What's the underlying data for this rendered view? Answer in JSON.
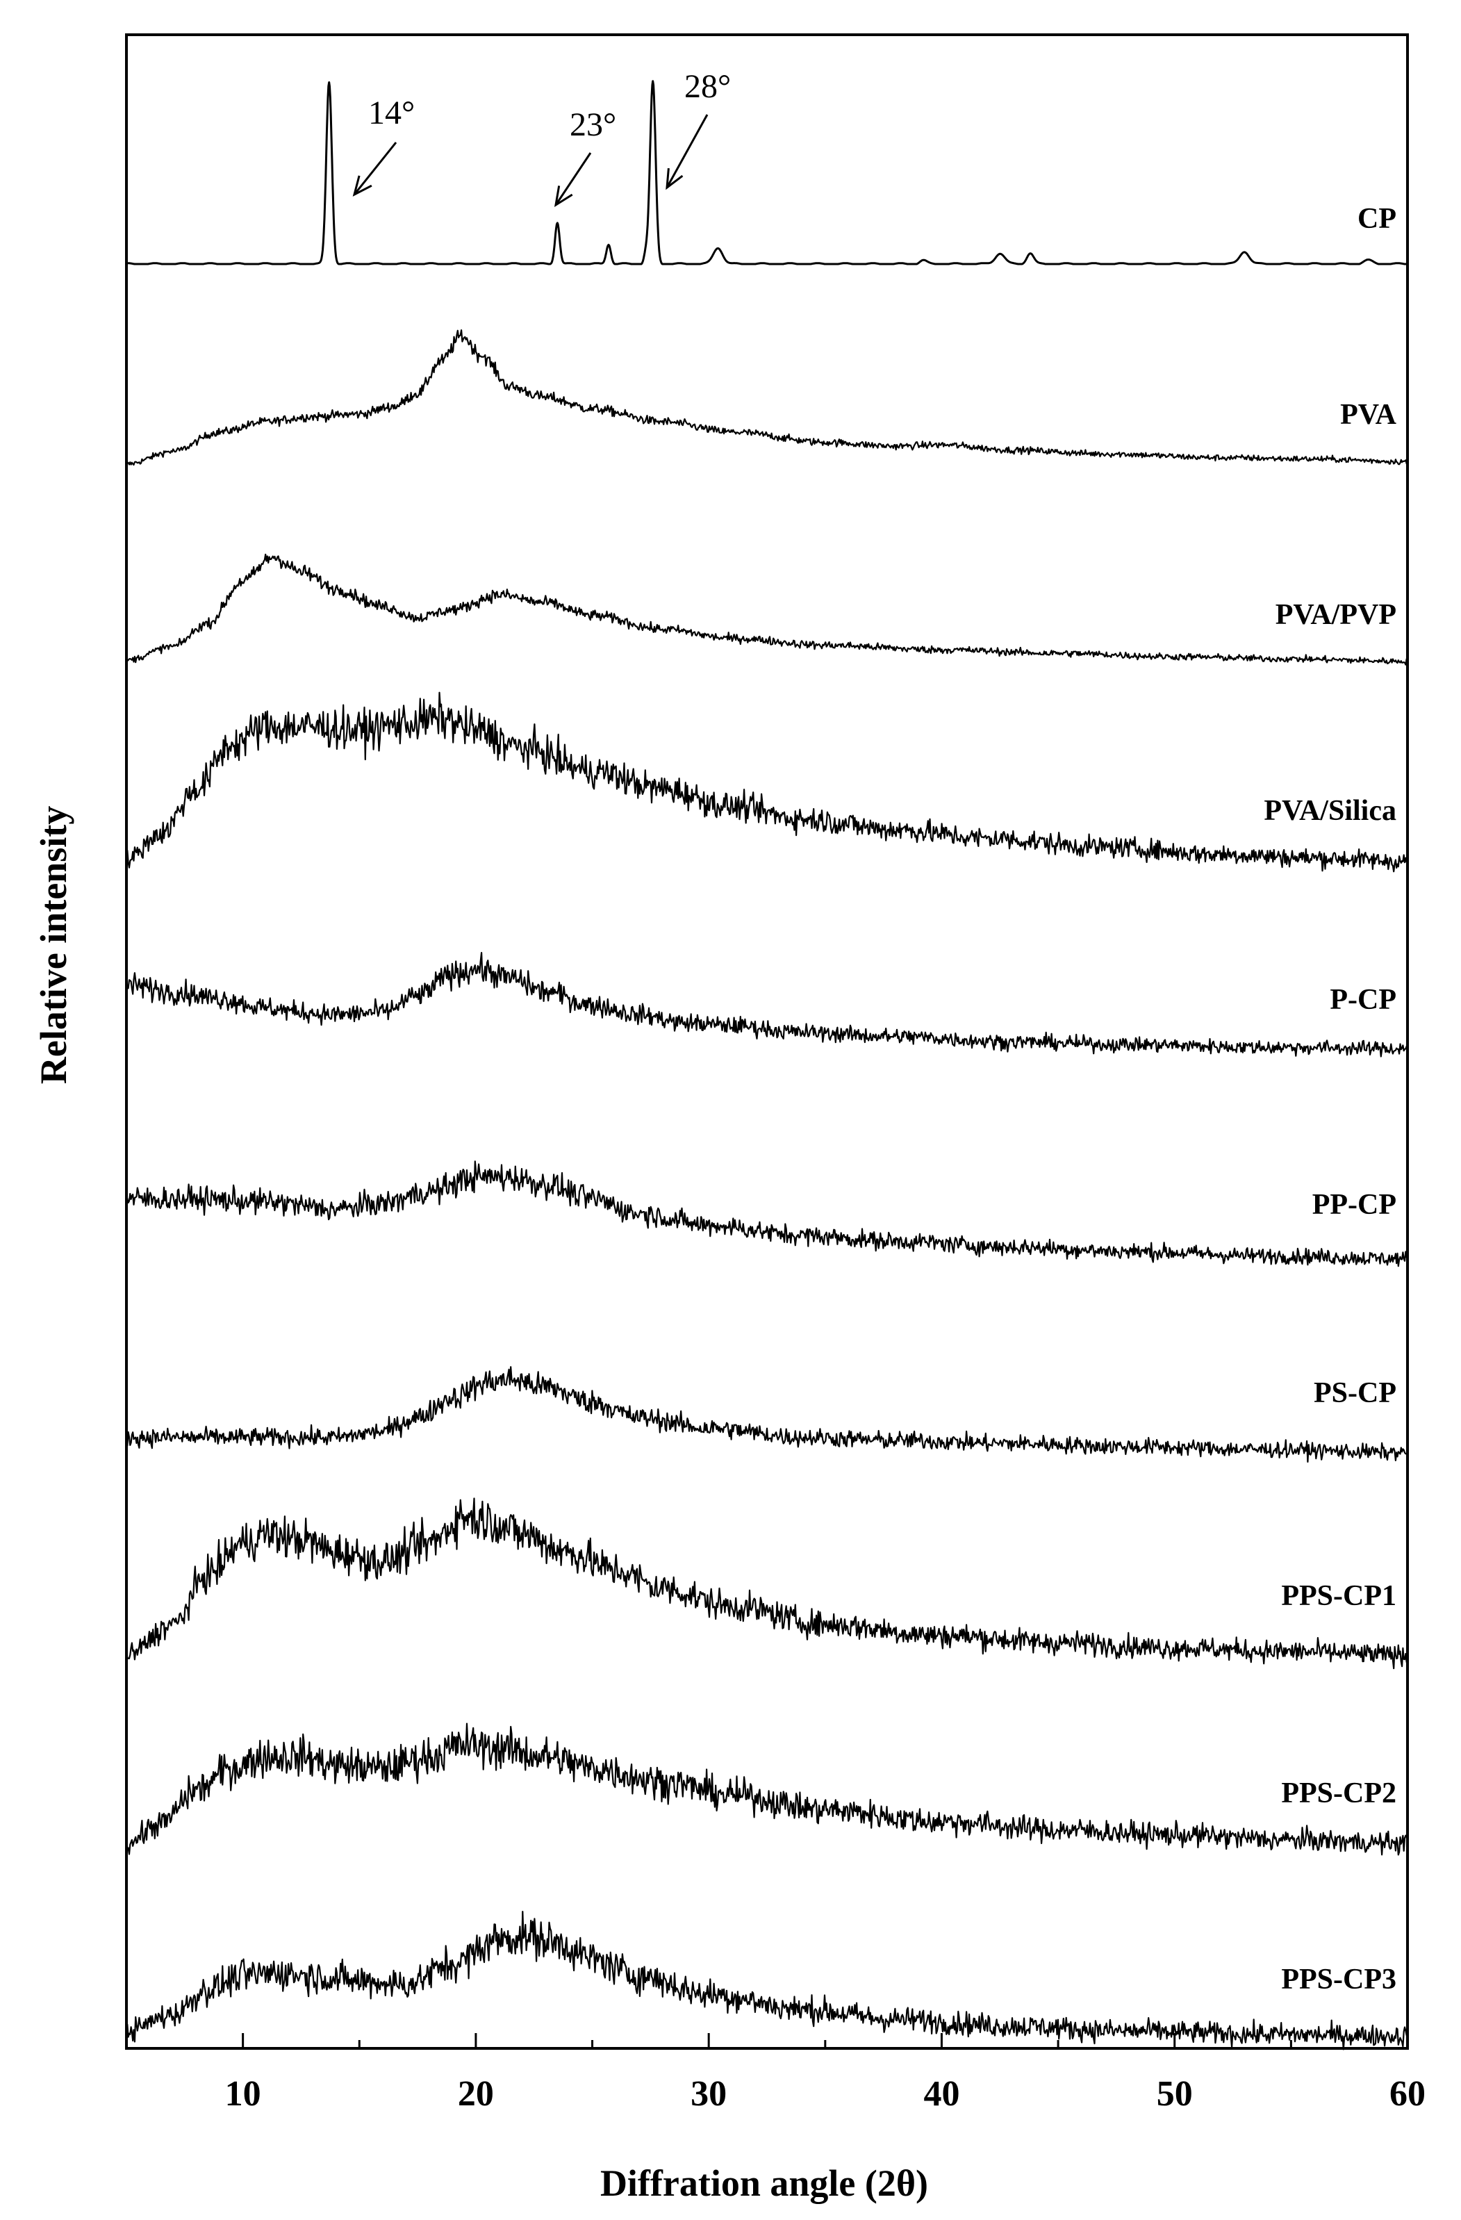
{
  "chart_data": {
    "type": "line",
    "xlabel": "Diffration angle (2θ)",
    "ylabel": "Relative intensity",
    "xlim": [
      5,
      60
    ],
    "x_ticks": [
      "10",
      "20",
      "30",
      "40",
      "50",
      "60"
    ],
    "y_ticks_shown": false,
    "grid": false,
    "legend": "none; series labeled directly at the right end of each trace",
    "layout": "vertically stacked (offset) diffractograms, CP on top, PPS-CP3 at bottom",
    "series": [
      {
        "name": "CP",
        "style": "sharp crystalline peaks",
        "baseline": 0.02,
        "peaks": [
          {
            "x": 13.7,
            "h": 1.0,
            "w": 0.12
          },
          {
            "x": 23.5,
            "h": 0.23,
            "w": 0.1
          },
          {
            "x": 25.7,
            "h": 0.11,
            "w": 0.1
          },
          {
            "x": 27.3,
            "h": 0.06,
            "w": 0.08
          },
          {
            "x": 27.6,
            "h": 1.0,
            "w": 0.12
          },
          {
            "x": 30.4,
            "h": 0.09,
            "w": 0.2
          },
          {
            "x": 39.2,
            "h": 0.02,
            "w": 0.15
          },
          {
            "x": 42.5,
            "h": 0.06,
            "w": 0.2
          },
          {
            "x": 43.8,
            "h": 0.06,
            "w": 0.15
          },
          {
            "x": 53.0,
            "h": 0.07,
            "w": 0.2
          },
          {
            "x": 58.3,
            "h": 0.02,
            "w": 0.2
          }
        ]
      },
      {
        "name": "PVA",
        "style": "semicrystalline broad peak",
        "points": [
          [
            5,
            0.0
          ],
          [
            7,
            0.1
          ],
          [
            9,
            0.25
          ],
          [
            11,
            0.33
          ],
          [
            13,
            0.37
          ],
          [
            15,
            0.39
          ],
          [
            16.5,
            0.45
          ],
          [
            17.5,
            0.55
          ],
          [
            18.5,
            0.8
          ],
          [
            19.4,
            1.0
          ],
          [
            20.2,
            0.85
          ],
          [
            21.5,
            0.6
          ],
          [
            23,
            0.52
          ],
          [
            25,
            0.43
          ],
          [
            28,
            0.33
          ],
          [
            31,
            0.25
          ],
          [
            35,
            0.17
          ],
          [
            38,
            0.14
          ],
          [
            40,
            0.15
          ],
          [
            43,
            0.11
          ],
          [
            47,
            0.08
          ],
          [
            52,
            0.05
          ],
          [
            56,
            0.04
          ],
          [
            60,
            0.02
          ]
        ]
      },
      {
        "name": "PVA/PVP",
        "style": "amorphous",
        "points": [
          [
            5,
            0.03
          ],
          [
            7,
            0.15
          ],
          [
            8.5,
            0.35
          ],
          [
            10,
            0.72
          ],
          [
            11.3,
            0.93
          ],
          [
            12.5,
            0.8
          ],
          [
            14,
            0.65
          ],
          [
            16,
            0.5
          ],
          [
            17.5,
            0.4
          ],
          [
            19,
            0.47
          ],
          [
            21,
            0.6
          ],
          [
            23,
            0.53
          ],
          [
            25,
            0.42
          ],
          [
            28,
            0.3
          ],
          [
            31,
            0.22
          ],
          [
            35,
            0.16
          ],
          [
            40,
            0.12
          ],
          [
            45,
            0.09
          ],
          [
            50,
            0.06
          ],
          [
            55,
            0.04
          ],
          [
            60,
            0.02
          ]
        ]
      },
      {
        "name": "PVA/Silica",
        "style": "amorphous",
        "points": [
          [
            5,
            0.05
          ],
          [
            6.5,
            0.2
          ],
          [
            8,
            0.45
          ],
          [
            9.5,
            0.7
          ],
          [
            11,
            0.8
          ],
          [
            13,
            0.8
          ],
          [
            15,
            0.78
          ],
          [
            17,
            0.82
          ],
          [
            18.5,
            0.85
          ],
          [
            20,
            0.78
          ],
          [
            22,
            0.68
          ],
          [
            25,
            0.55
          ],
          [
            28,
            0.45
          ],
          [
            31,
            0.35
          ],
          [
            34,
            0.28
          ],
          [
            38,
            0.22
          ],
          [
            42,
            0.17
          ],
          [
            47,
            0.12
          ],
          [
            52,
            0.08
          ],
          [
            56,
            0.06
          ],
          [
            60,
            0.04
          ]
        ]
      },
      {
        "name": "P-CP",
        "style": "amorphous",
        "points": [
          [
            5,
            0.5
          ],
          [
            7,
            0.45
          ],
          [
            9,
            0.4
          ],
          [
            11,
            0.33
          ],
          [
            12.5,
            0.3
          ],
          [
            14,
            0.28
          ],
          [
            16,
            0.3
          ],
          [
            17.5,
            0.42
          ],
          [
            19,
            0.58
          ],
          [
            20,
            0.62
          ],
          [
            21.5,
            0.55
          ],
          [
            23,
            0.45
          ],
          [
            25,
            0.35
          ],
          [
            27,
            0.28
          ],
          [
            29,
            0.22
          ],
          [
            31,
            0.2
          ],
          [
            34,
            0.15
          ],
          [
            38,
            0.12
          ],
          [
            43,
            0.08
          ],
          [
            48,
            0.06
          ],
          [
            54,
            0.04
          ],
          [
            60,
            0.03
          ]
        ]
      },
      {
        "name": "PP-CP",
        "style": "amorphous",
        "points": [
          [
            5,
            0.45
          ],
          [
            8,
            0.45
          ],
          [
            11,
            0.43
          ],
          [
            14,
            0.38
          ],
          [
            16,
            0.42
          ],
          [
            18,
            0.5
          ],
          [
            20,
            0.6
          ],
          [
            21.5,
            0.6
          ],
          [
            23,
            0.55
          ],
          [
            25,
            0.45
          ],
          [
            27,
            0.35
          ],
          [
            30,
            0.27
          ],
          [
            34,
            0.2
          ],
          [
            38,
            0.16
          ],
          [
            43,
            0.12
          ],
          [
            48,
            0.09
          ],
          [
            54,
            0.06
          ],
          [
            60,
            0.04
          ]
        ]
      },
      {
        "name": "PS-CP",
        "style": "amorphous",
        "points": [
          [
            5,
            0.12
          ],
          [
            8,
            0.12
          ],
          [
            11,
            0.12
          ],
          [
            14,
            0.12
          ],
          [
            16,
            0.16
          ],
          [
            17.5,
            0.25
          ],
          [
            19,
            0.38
          ],
          [
            20.5,
            0.48
          ],
          [
            21.5,
            0.5
          ],
          [
            23,
            0.45
          ],
          [
            25,
            0.35
          ],
          [
            27,
            0.25
          ],
          [
            30,
            0.18
          ],
          [
            34,
            0.12
          ],
          [
            38,
            0.1
          ],
          [
            43,
            0.08
          ],
          [
            48,
            0.06
          ],
          [
            54,
            0.04
          ],
          [
            60,
            0.02
          ]
        ]
      },
      {
        "name": "PPS-CP1",
        "style": "amorphous",
        "points": [
          [
            5,
            0.03
          ],
          [
            7,
            0.2
          ],
          [
            8.5,
            0.48
          ],
          [
            10,
            0.65
          ],
          [
            11,
            0.7
          ],
          [
            12.5,
            0.67
          ],
          [
            14,
            0.6
          ],
          [
            16,
            0.55
          ],
          [
            18,
            0.65
          ],
          [
            19.5,
            0.8
          ],
          [
            20.5,
            0.78
          ],
          [
            22,
            0.7
          ],
          [
            24,
            0.6
          ],
          [
            26,
            0.5
          ],
          [
            28,
            0.4
          ],
          [
            31,
            0.3
          ],
          [
            35,
            0.2
          ],
          [
            40,
            0.14
          ],
          [
            45,
            0.1
          ],
          [
            50,
            0.07
          ],
          [
            55,
            0.05
          ],
          [
            60,
            0.03
          ]
        ]
      },
      {
        "name": "PPS-CP2",
        "style": "amorphous",
        "points": [
          [
            5,
            0.03
          ],
          [
            6.5,
            0.15
          ],
          [
            8,
            0.35
          ],
          [
            9.5,
            0.48
          ],
          [
            11,
            0.55
          ],
          [
            12.5,
            0.55
          ],
          [
            14,
            0.5
          ],
          [
            16,
            0.48
          ],
          [
            18,
            0.55
          ],
          [
            19.5,
            0.62
          ],
          [
            21,
            0.6
          ],
          [
            23,
            0.55
          ],
          [
            25,
            0.48
          ],
          [
            28,
            0.4
          ],
          [
            31,
            0.32
          ],
          [
            35,
            0.23
          ],
          [
            40,
            0.16
          ],
          [
            45,
            0.11
          ],
          [
            50,
            0.08
          ],
          [
            55,
            0.05
          ],
          [
            60,
            0.03
          ]
        ]
      },
      {
        "name": "PPS-CP3",
        "style": "amorphous",
        "points": [
          [
            5,
            0.05
          ],
          [
            7,
            0.15
          ],
          [
            8.5,
            0.3
          ],
          [
            10,
            0.38
          ],
          [
            11.5,
            0.4
          ],
          [
            13,
            0.38
          ],
          [
            15,
            0.35
          ],
          [
            17,
            0.33
          ],
          [
            19,
            0.45
          ],
          [
            21,
            0.6
          ],
          [
            22,
            0.62
          ],
          [
            23.5,
            0.58
          ],
          [
            25,
            0.48
          ],
          [
            27,
            0.38
          ],
          [
            30,
            0.27
          ],
          [
            34,
            0.18
          ],
          [
            38,
            0.12
          ],
          [
            43,
            0.08
          ],
          [
            48,
            0.05
          ],
          [
            54,
            0.03
          ],
          [
            60,
            0.02
          ]
        ]
      }
    ],
    "annotations": [
      {
        "text": "14°",
        "x": 13.7
      },
      {
        "text": "23°",
        "x": 23.5
      },
      {
        "text": "28°",
        "x": 27.6
      }
    ]
  }
}
